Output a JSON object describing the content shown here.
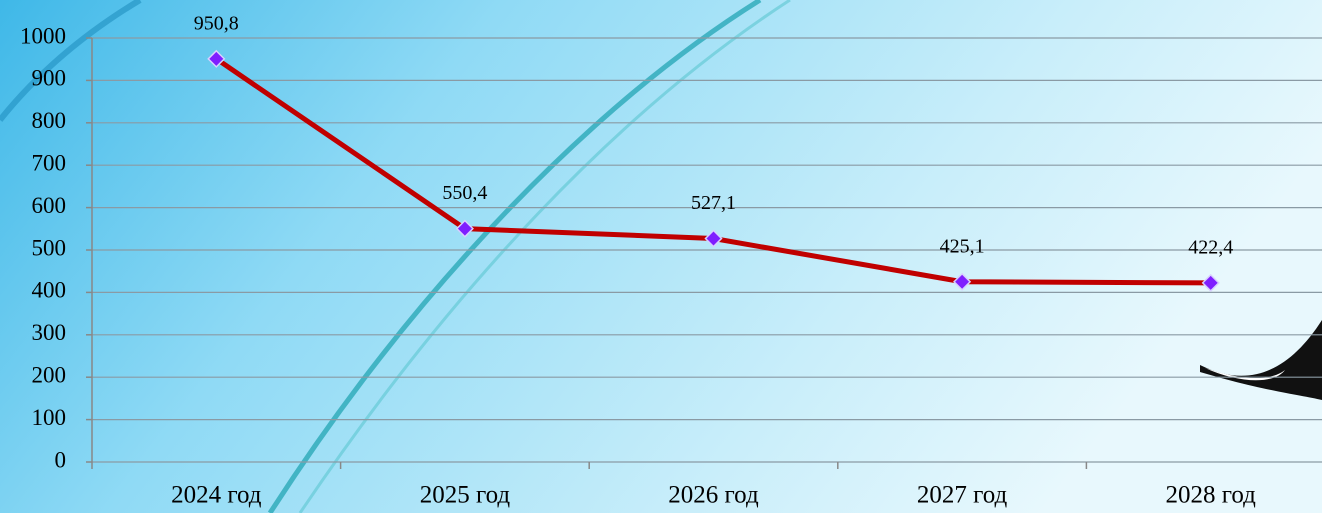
{
  "chart_data": {
    "type": "line",
    "categories": [
      "2024 год",
      "2025 год",
      "2026 год",
      "2027 год",
      "2028 год"
    ],
    "values": [
      950.8,
      550.4,
      527.1,
      425.1,
      422.4
    ],
    "value_labels": [
      "950,8",
      "550,4",
      "527,1",
      "425,1",
      "422,4"
    ],
    "color": "#c00000",
    "marker_color": "#7f1fff",
    "ylim": [
      0,
      1000
    ],
    "yticks": [
      0,
      100,
      200,
      300,
      400,
      500,
      600,
      700,
      800,
      900,
      1000
    ],
    "grid": true
  }
}
